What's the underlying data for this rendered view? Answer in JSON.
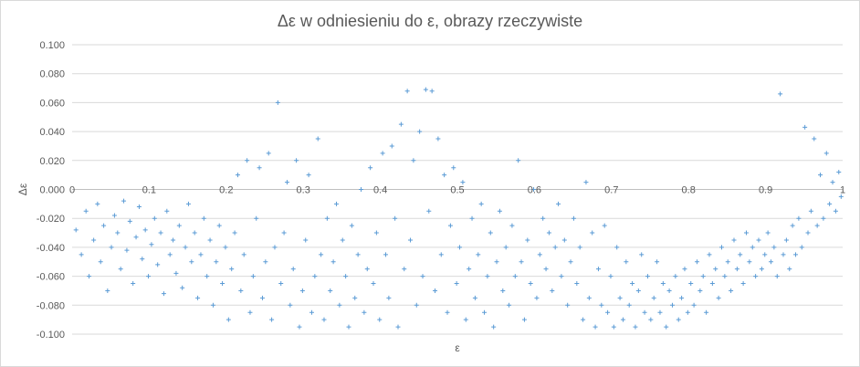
{
  "chart_data": {
    "type": "scatter",
    "title": "Δε w odniesieniu do ε, obrazy rzeczywiste",
    "xlabel": "ε",
    "ylabel": "Δε",
    "xlim": [
      0,
      1
    ],
    "ylim": [
      -0.1,
      0.1
    ],
    "x_ticks": [
      "0",
      "0.1",
      "0.2",
      "0.3",
      "0.4",
      "0.5",
      "0.6",
      "0.7",
      "0.8",
      "0.9",
      "1"
    ],
    "y_ticks": [
      "0.100",
      "0.080",
      "0.060",
      "0.040",
      "0.020",
      "0.000",
      "-0.020",
      "-0.040",
      "-0.060",
      "-0.080",
      "-0.100"
    ],
    "grid": "horizontal",
    "marker": "+",
    "color": "#5b9bd5",
    "series": [
      {
        "points": [
          [
            0.005,
            -0.028
          ],
          [
            0.012,
            -0.045
          ],
          [
            0.018,
            -0.015
          ],
          [
            0.022,
            -0.06
          ],
          [
            0.028,
            -0.035
          ],
          [
            0.033,
            -0.01
          ],
          [
            0.037,
            -0.05
          ],
          [
            0.041,
            -0.025
          ],
          [
            0.046,
            -0.07
          ],
          [
            0.051,
            -0.04
          ],
          [
            0.055,
            -0.018
          ],
          [
            0.059,
            -0.03
          ],
          [
            0.063,
            -0.055
          ],
          [
            0.067,
            -0.008
          ],
          [
            0.071,
            -0.042
          ],
          [
            0.075,
            -0.022
          ],
          [
            0.079,
            -0.065
          ],
          [
            0.083,
            -0.033
          ],
          [
            0.087,
            -0.012
          ],
          [
            0.091,
            -0.048
          ],
          [
            0.095,
            -0.028
          ],
          [
            0.099,
            -0.06
          ],
          [
            0.103,
            -0.038
          ],
          [
            0.107,
            -0.02
          ],
          [
            0.111,
            -0.052
          ],
          [
            0.115,
            -0.03
          ],
          [
            0.119,
            -0.072
          ],
          [
            0.123,
            -0.015
          ],
          [
            0.127,
            -0.045
          ],
          [
            0.131,
            -0.035
          ],
          [
            0.135,
            -0.058
          ],
          [
            0.139,
            -0.025
          ],
          [
            0.143,
            -0.068
          ],
          [
            0.147,
            -0.04
          ],
          [
            0.151,
            -0.01
          ],
          [
            0.155,
            -0.05
          ],
          [
            0.159,
            -0.03
          ],
          [
            0.163,
            -0.075
          ],
          [
            0.167,
            -0.045
          ],
          [
            0.171,
            -0.02
          ],
          [
            0.175,
            -0.06
          ],
          [
            0.179,
            -0.035
          ],
          [
            0.183,
            -0.08
          ],
          [
            0.187,
            -0.05
          ],
          [
            0.191,
            -0.025
          ],
          [
            0.195,
            -0.065
          ],
          [
            0.199,
            -0.04
          ],
          [
            0.203,
            -0.09
          ],
          [
            0.207,
            -0.055
          ],
          [
            0.211,
            -0.03
          ],
          [
            0.215,
            0.01
          ],
          [
            0.219,
            -0.07
          ],
          [
            0.223,
            -0.045
          ],
          [
            0.227,
            0.02
          ],
          [
            0.231,
            -0.085
          ],
          [
            0.235,
            -0.06
          ],
          [
            0.239,
            -0.02
          ],
          [
            0.243,
            0.015
          ],
          [
            0.247,
            -0.075
          ],
          [
            0.251,
            -0.05
          ],
          [
            0.255,
            0.025
          ],
          [
            0.259,
            -0.09
          ],
          [
            0.263,
            -0.04
          ],
          [
            0.267,
            0.06
          ],
          [
            0.271,
            -0.065
          ],
          [
            0.275,
            -0.03
          ],
          [
            0.279,
            0.005
          ],
          [
            0.283,
            -0.08
          ],
          [
            0.287,
            -0.055
          ],
          [
            0.291,
            0.02
          ],
          [
            0.295,
            -0.095
          ],
          [
            0.299,
            -0.07
          ],
          [
            0.303,
            -0.035
          ],
          [
            0.307,
            0.01
          ],
          [
            0.311,
            -0.085
          ],
          [
            0.315,
            -0.06
          ],
          [
            0.319,
            0.035
          ],
          [
            0.323,
            -0.045
          ],
          [
            0.327,
            -0.09
          ],
          [
            0.331,
            -0.02
          ],
          [
            0.335,
            -0.07
          ],
          [
            0.339,
            -0.05
          ],
          [
            0.343,
            -0.01
          ],
          [
            0.347,
            -0.08
          ],
          [
            0.351,
            -0.035
          ],
          [
            0.355,
            -0.06
          ],
          [
            0.359,
            -0.095
          ],
          [
            0.363,
            -0.025
          ],
          [
            0.367,
            -0.075
          ],
          [
            0.371,
            -0.045
          ],
          [
            0.375,
            0.0
          ],
          [
            0.379,
            -0.085
          ],
          [
            0.383,
            -0.055
          ],
          [
            0.387,
            0.015
          ],
          [
            0.391,
            -0.065
          ],
          [
            0.395,
            -0.03
          ],
          [
            0.399,
            -0.09
          ],
          [
            0.403,
            0.025
          ],
          [
            0.407,
            -0.045
          ],
          [
            0.411,
            -0.075
          ],
          [
            0.415,
            0.03
          ],
          [
            0.419,
            -0.02
          ],
          [
            0.423,
            -0.095
          ],
          [
            0.427,
            0.045
          ],
          [
            0.431,
            -0.055
          ],
          [
            0.435,
            0.068
          ],
          [
            0.439,
            -0.035
          ],
          [
            0.443,
            0.02
          ],
          [
            0.447,
            -0.08
          ],
          [
            0.451,
            0.04
          ],
          [
            0.455,
            -0.06
          ],
          [
            0.459,
            0.069
          ],
          [
            0.463,
            -0.015
          ],
          [
            0.467,
            0.068
          ],
          [
            0.471,
            -0.07
          ],
          [
            0.475,
            0.035
          ],
          [
            0.479,
            -0.045
          ],
          [
            0.483,
            0.01
          ],
          [
            0.487,
            -0.085
          ],
          [
            0.491,
            -0.025
          ],
          [
            0.495,
            0.015
          ],
          [
            0.499,
            -0.065
          ],
          [
            0.503,
            -0.04
          ],
          [
            0.507,
            0.005
          ],
          [
            0.511,
            -0.09
          ],
          [
            0.515,
            -0.055
          ],
          [
            0.519,
            -0.02
          ],
          [
            0.523,
            -0.075
          ],
          [
            0.527,
            -0.045
          ],
          [
            0.531,
            -0.01
          ],
          [
            0.535,
            -0.085
          ],
          [
            0.539,
            -0.06
          ],
          [
            0.543,
            -0.03
          ],
          [
            0.547,
            -0.095
          ],
          [
            0.551,
            -0.05
          ],
          [
            0.555,
            -0.015
          ],
          [
            0.559,
            -0.07
          ],
          [
            0.563,
            -0.04
          ],
          [
            0.567,
            -0.08
          ],
          [
            0.571,
            -0.025
          ],
          [
            0.575,
            -0.06
          ],
          [
            0.579,
            0.02
          ],
          [
            0.583,
            -0.05
          ],
          [
            0.587,
            -0.09
          ],
          [
            0.591,
            -0.035
          ],
          [
            0.595,
            -0.065
          ],
          [
            0.599,
            0.0
          ],
          [
            0.603,
            -0.075
          ],
          [
            0.607,
            -0.045
          ],
          [
            0.611,
            -0.02
          ],
          [
            0.615,
            -0.055
          ],
          [
            0.619,
            -0.03
          ],
          [
            0.623,
            -0.07
          ],
          [
            0.627,
            -0.04
          ],
          [
            0.631,
            -0.01
          ],
          [
            0.635,
            -0.06
          ],
          [
            0.639,
            -0.035
          ],
          [
            0.643,
            -0.08
          ],
          [
            0.647,
            -0.05
          ],
          [
            0.651,
            -0.02
          ],
          [
            0.655,
            -0.065
          ],
          [
            0.659,
            -0.04
          ],
          [
            0.663,
            -0.09
          ],
          [
            0.667,
            0.005
          ],
          [
            0.671,
            -0.075
          ],
          [
            0.675,
            -0.03
          ],
          [
            0.679,
            -0.095
          ],
          [
            0.683,
            -0.055
          ],
          [
            0.687,
            -0.08
          ],
          [
            0.691,
            -0.025
          ],
          [
            0.695,
            -0.085
          ],
          [
            0.699,
            -0.06
          ],
          [
            0.703,
            -0.095
          ],
          [
            0.707,
            -0.04
          ],
          [
            0.711,
            -0.075
          ],
          [
            0.715,
            -0.09
          ],
          [
            0.719,
            -0.05
          ],
          [
            0.723,
            -0.08
          ],
          [
            0.727,
            -0.065
          ],
          [
            0.731,
            -0.095
          ],
          [
            0.735,
            -0.07
          ],
          [
            0.739,
            -0.045
          ],
          [
            0.743,
            -0.085
          ],
          [
            0.747,
            -0.06
          ],
          [
            0.751,
            -0.09
          ],
          [
            0.755,
            -0.075
          ],
          [
            0.759,
            -0.05
          ],
          [
            0.763,
            -0.085
          ],
          [
            0.767,
            -0.065
          ],
          [
            0.771,
            -0.095
          ],
          [
            0.775,
            -0.07
          ],
          [
            0.779,
            -0.08
          ],
          [
            0.783,
            -0.06
          ],
          [
            0.787,
            -0.09
          ],
          [
            0.791,
            -0.075
          ],
          [
            0.795,
            -0.055
          ],
          [
            0.799,
            -0.085
          ],
          [
            0.803,
            -0.065
          ],
          [
            0.807,
            -0.08
          ],
          [
            0.811,
            -0.05
          ],
          [
            0.815,
            -0.07
          ],
          [
            0.819,
            -0.06
          ],
          [
            0.823,
            -0.085
          ],
          [
            0.827,
            -0.045
          ],
          [
            0.831,
            -0.065
          ],
          [
            0.835,
            -0.055
          ],
          [
            0.839,
            -0.075
          ],
          [
            0.843,
            -0.04
          ],
          [
            0.847,
            -0.06
          ],
          [
            0.851,
            -0.05
          ],
          [
            0.855,
            -0.07
          ],
          [
            0.859,
            -0.035
          ],
          [
            0.863,
            -0.055
          ],
          [
            0.867,
            -0.045
          ],
          [
            0.871,
            -0.065
          ],
          [
            0.875,
            -0.03
          ],
          [
            0.879,
            -0.05
          ],
          [
            0.883,
            -0.04
          ],
          [
            0.887,
            -0.06
          ],
          [
            0.891,
            -0.035
          ],
          [
            0.895,
            -0.055
          ],
          [
            0.899,
            -0.045
          ],
          [
            0.903,
            -0.03
          ],
          [
            0.907,
            -0.05
          ],
          [
            0.911,
            -0.04
          ],
          [
            0.915,
            -0.06
          ],
          [
            0.919,
            0.066
          ],
          [
            0.923,
            -0.045
          ],
          [
            0.927,
            -0.035
          ],
          [
            0.931,
            -0.055
          ],
          [
            0.935,
            -0.025
          ],
          [
            0.939,
            -0.045
          ],
          [
            0.943,
            -0.02
          ],
          [
            0.947,
            -0.04
          ],
          [
            0.951,
            0.043
          ],
          [
            0.955,
            -0.03
          ],
          [
            0.959,
            -0.015
          ],
          [
            0.963,
            0.035
          ],
          [
            0.967,
            -0.025
          ],
          [
            0.971,
            0.01
          ],
          [
            0.975,
            -0.02
          ],
          [
            0.979,
            0.025
          ],
          [
            0.983,
            -0.01
          ],
          [
            0.987,
            0.005
          ],
          [
            0.991,
            -0.015
          ],
          [
            0.995,
            0.012
          ],
          [
            0.998,
            -0.005
          ]
        ]
      }
    ]
  }
}
